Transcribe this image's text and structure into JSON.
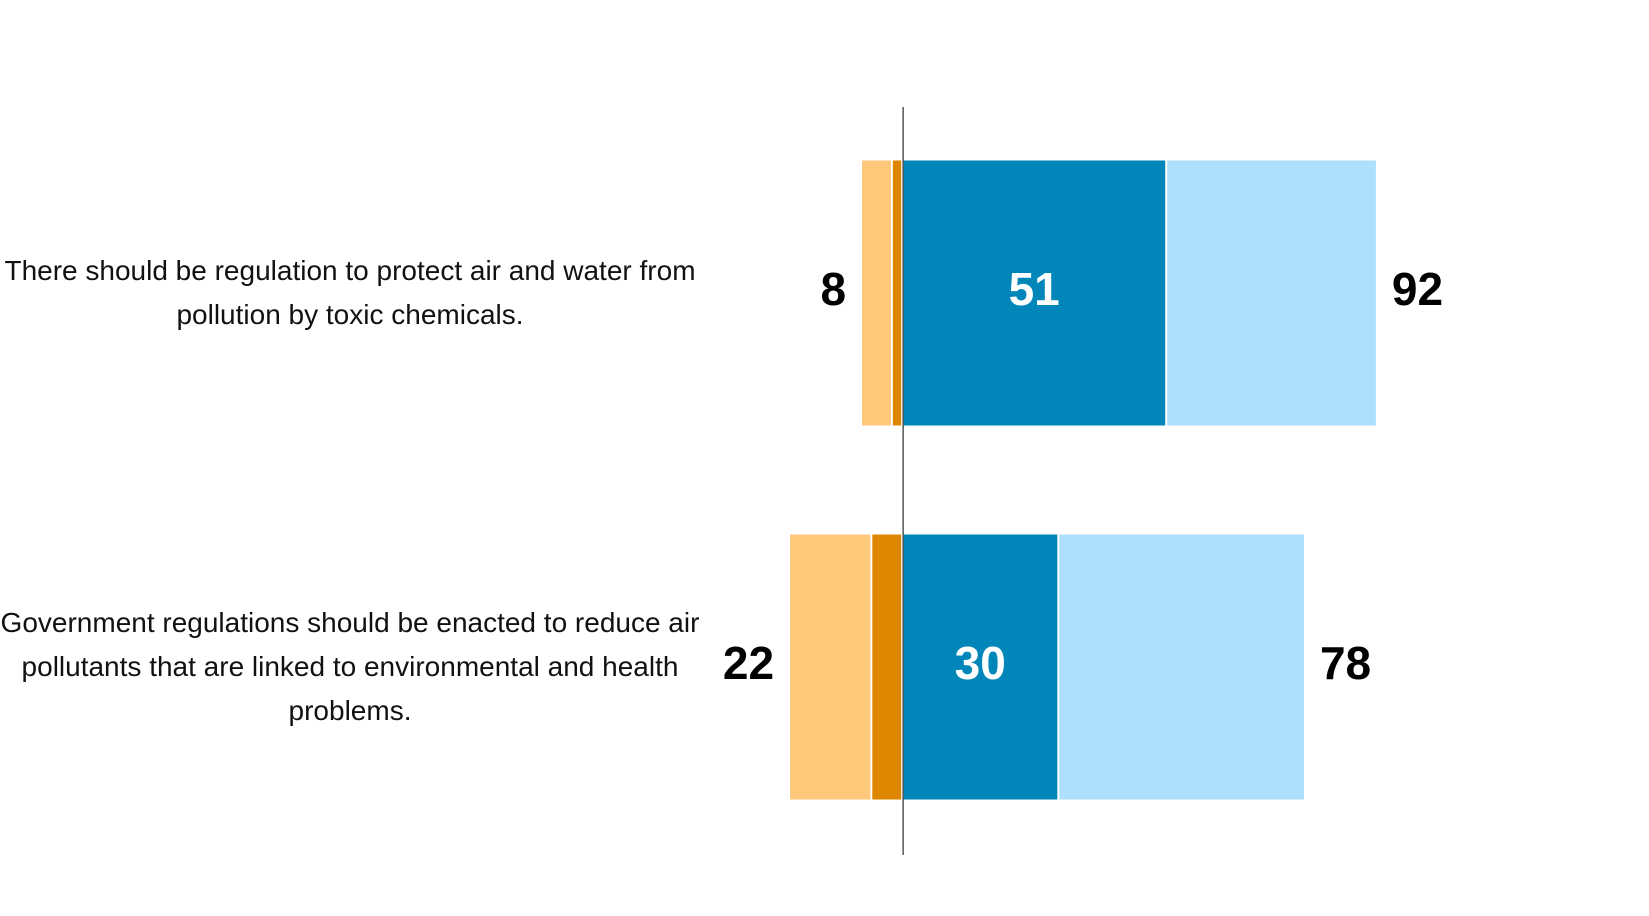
{
  "chart_data": {
    "type": "diverging-bar",
    "categories": [
      "There should be regulation to protect air and water from pollution by toxic chemicals.",
      "Government regulations should be enacted to reduce air pollutants that are linked to environmental and health problems."
    ],
    "series": [
      {
        "color": "#de8600",
        "values": [
          2,
          6
        ]
      },
      {
        "color": "#fdc879",
        "values": [
          6,
          16
        ]
      },
      {
        "color": "#0086b8",
        "values": [
          51,
          30
        ]
      },
      {
        "color": "#aedffd",
        "values": [
          41,
          48
        ]
      }
    ],
    "disagree_totals": [
      8,
      22
    ],
    "agree_totals": [
      92,
      78
    ],
    "xlim": [
      -30,
      100
    ],
    "xticks": [
      0
    ]
  }
}
